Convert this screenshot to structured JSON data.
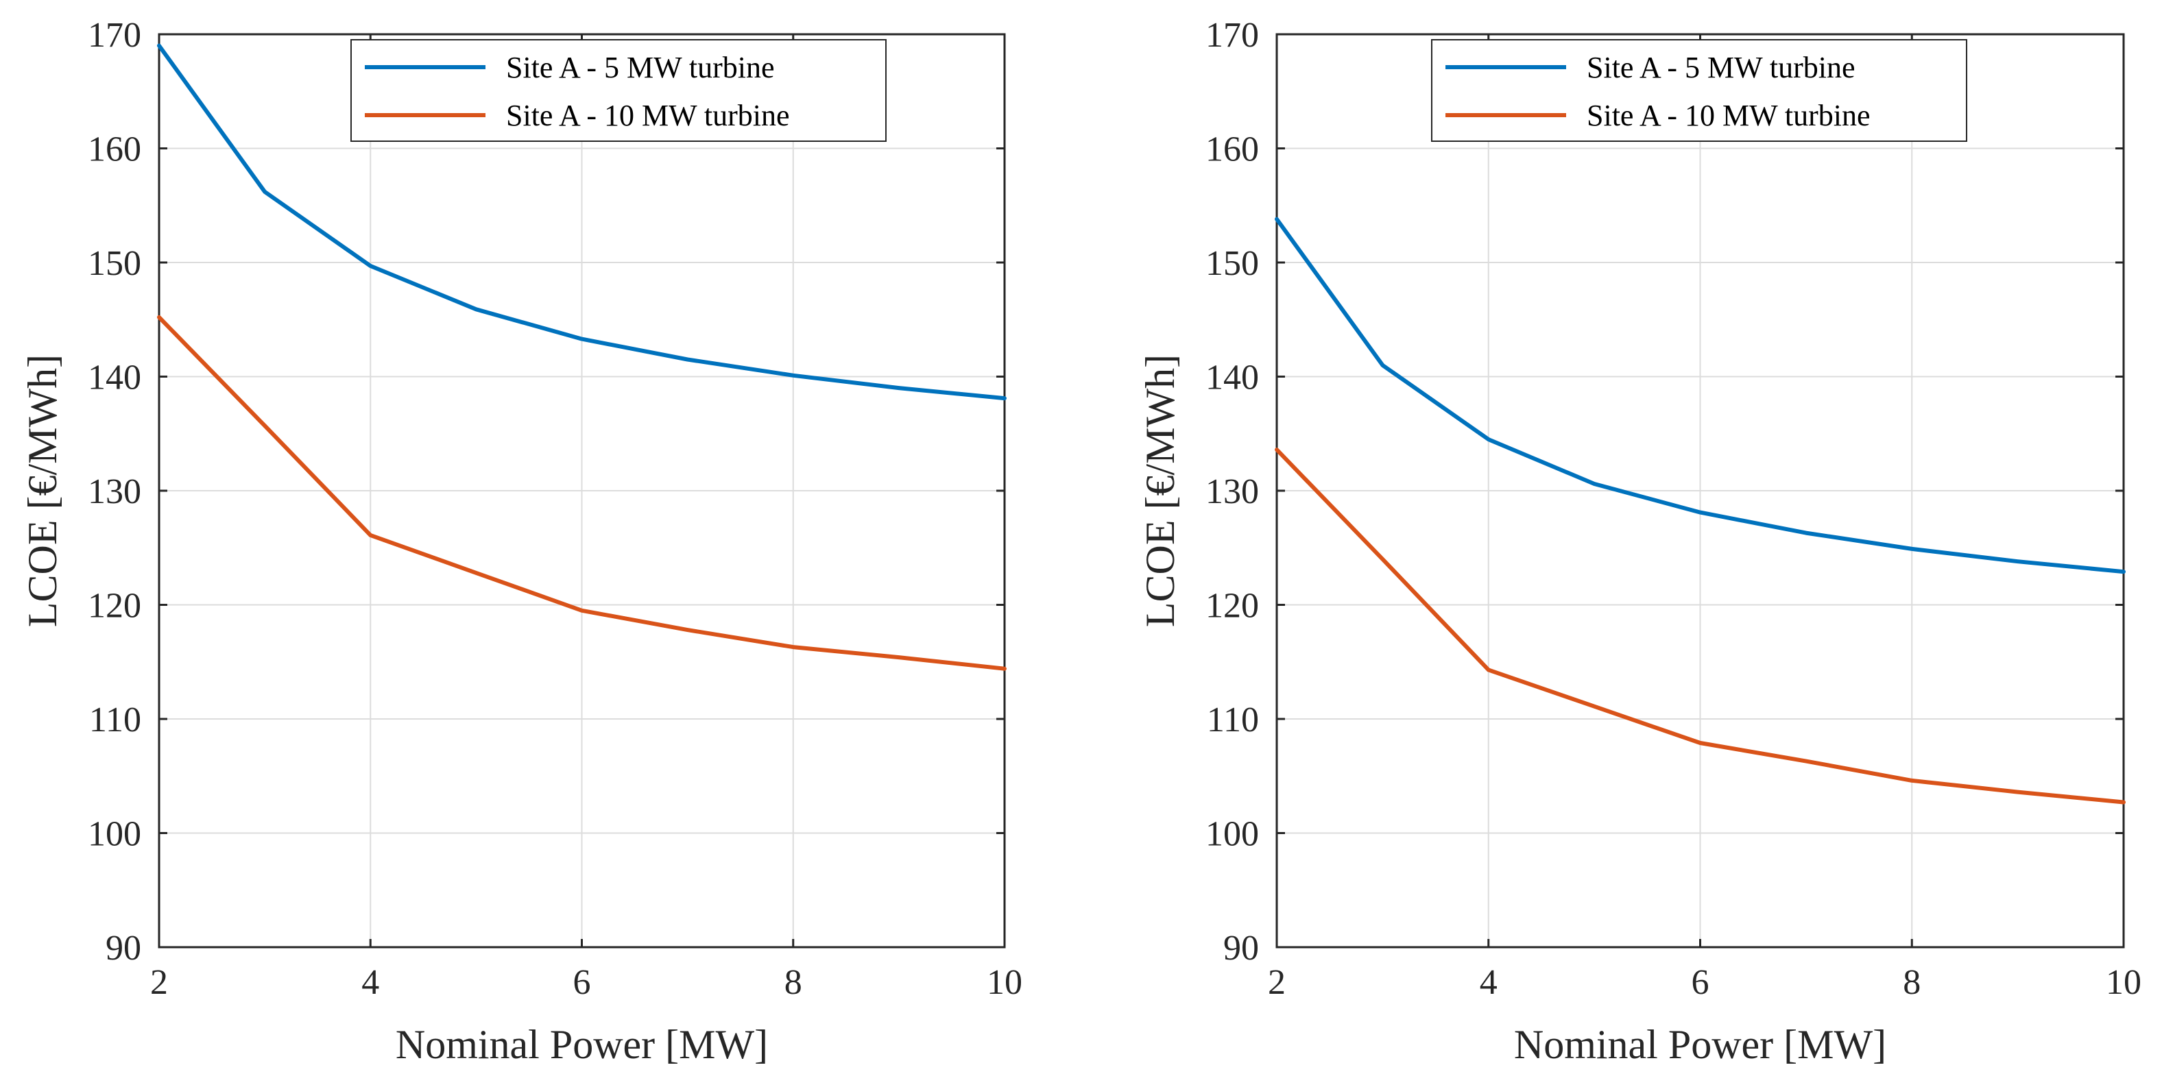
{
  "chart_data": [
    {
      "type": "line",
      "title": "",
      "xlabel": "Nominal Power [MW]",
      "ylabel": "LCOE [€/MWh]",
      "xlim": [
        2,
        10
      ],
      "ylim": [
        90,
        170
      ],
      "xticks": [
        2,
        4,
        6,
        8,
        10
      ],
      "yticks": [
        90,
        100,
        110,
        120,
        130,
        140,
        150,
        160,
        170
      ],
      "grid": true,
      "legend_position": "top-right",
      "x": [
        2,
        3,
        4,
        5,
        6,
        7,
        8,
        9,
        10
      ],
      "series": [
        {
          "name": "Site A - 5 MW turbine",
          "color": "#0072BD",
          "values": [
            169,
            156.2,
            149.7,
            145.9,
            143.3,
            141.5,
            140.1,
            139,
            138.1
          ]
        },
        {
          "name": "Site A - 10 MW turbine",
          "color": "#D95319",
          "values": [
            145.2,
            135.7,
            126.1,
            122.8,
            119.5,
            117.8,
            116.3,
            115.4,
            114.4
          ]
        }
      ]
    },
    {
      "type": "line",
      "title": "",
      "xlabel": "Nominal Power [MW]",
      "ylabel": "LCOE [€/MWh]",
      "xlim": [
        2,
        10
      ],
      "ylim": [
        90,
        170
      ],
      "xticks": [
        2,
        4,
        6,
        8,
        10
      ],
      "yticks": [
        90,
        100,
        110,
        120,
        130,
        140,
        150,
        160,
        170
      ],
      "grid": true,
      "legend_position": "top-right",
      "x": [
        2,
        3,
        4,
        5,
        6,
        7,
        8,
        9,
        10
      ],
      "series": [
        {
          "name": "Site A - 5 MW turbine",
          "color": "#0072BD",
          "values": [
            153.8,
            141,
            134.5,
            130.6,
            128.1,
            126.3,
            124.9,
            123.8,
            122.9
          ]
        },
        {
          "name": "Site A - 10 MW turbine",
          "color": "#D95319",
          "values": [
            133.6,
            124,
            114.3,
            111.1,
            107.9,
            106.3,
            104.6,
            103.6,
            102.7
          ]
        }
      ]
    }
  ]
}
